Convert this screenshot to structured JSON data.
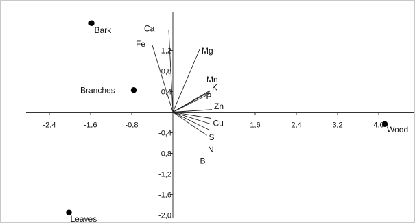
{
  "chart_data": {
    "type": "scatter",
    "title": "",
    "xlabel": "",
    "ylabel": "",
    "xlim": [
      -2.7,
      4.4
    ],
    "ylim": [
      -2.05,
      1.85
    ],
    "grid": false,
    "x_ticks": [
      -2.4,
      -1.6,
      -0.8,
      1.6,
      2.4,
      3.2,
      4.0
    ],
    "x_tick_labels": [
      "-2,4",
      "-1,6",
      "-0,8",
      "1,6",
      "2,4",
      "3,2",
      "4,0"
    ],
    "y_ticks": [
      1.2,
      0.8,
      0.4,
      -0.4,
      -0.8,
      -1.2,
      -1.6,
      -2.0
    ],
    "y_tick_labels": [
      "1,2",
      "0,8",
      "0,4",
      "-0,4",
      "-0,8",
      "-1,2",
      "-1,6",
      "-2,0"
    ],
    "samples": [
      {
        "label": "Bark",
        "x": -1.58,
        "y": 1.73
      },
      {
        "label": "Branches",
        "x": -0.76,
        "y": 0.43
      },
      {
        "label": "Wood",
        "x": 4.12,
        "y": -0.23
      },
      {
        "label": "Leaves",
        "x": -2.02,
        "y": -1.95
      }
    ],
    "variables": [
      {
        "label": "Ca",
        "x": -0.08,
        "y": 1.6
      },
      {
        "label": "Fe",
        "x": -0.4,
        "y": 1.3
      },
      {
        "label": "Mg",
        "x": 0.52,
        "y": 1.22
      },
      {
        "label": "Mn",
        "x": 0.72,
        "y": 0.42
      },
      {
        "label": "K",
        "x": 0.72,
        "y": 0.4
      },
      {
        "label": "P",
        "x": 0.7,
        "y": 0.35
      },
      {
        "label": "Zn",
        "x": 0.76,
        "y": 0.05
      },
      {
        "label": "Cu",
        "x": 0.74,
        "y": -0.12
      },
      {
        "label": "S",
        "x": 0.74,
        "y": -0.23
      },
      {
        "label": "N",
        "x": 0.72,
        "y": -0.35
      },
      {
        "label": "B",
        "x": 0.66,
        "y": -0.45
      }
    ]
  }
}
